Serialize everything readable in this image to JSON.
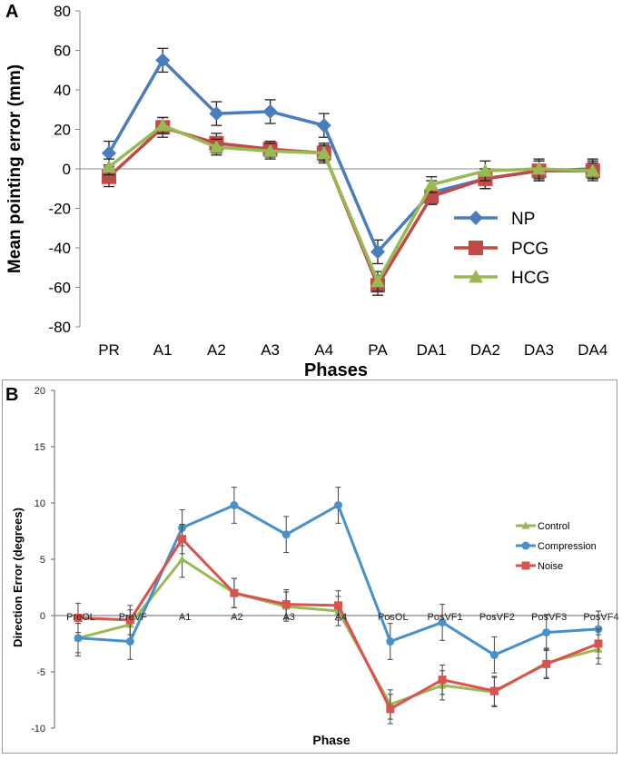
{
  "chart_data": [
    {
      "panel": "A",
      "type": "line",
      "title": "",
      "xlabel": "Phases",
      "ylabel": "Mean pointing error (mm)",
      "ylim": [
        -80,
        80
      ],
      "yticks": [
        -80,
        -60,
        -40,
        -20,
        0,
        20,
        40,
        60,
        80
      ],
      "categories": [
        "PR",
        "A1",
        "A2",
        "A3",
        "A4",
        "PA",
        "DA1",
        "DA2",
        "DA3",
        "DA4"
      ],
      "legend_position": "right",
      "series": [
        {
          "name": "NP",
          "color": "#4a7ebb",
          "marker": "diamond",
          "values": [
            8,
            55,
            28,
            29,
            22,
            -42,
            -12,
            -5,
            -1,
            0
          ],
          "errors": [
            6,
            6,
            6,
            6,
            6,
            6,
            6,
            5,
            5,
            5
          ]
        },
        {
          "name": "PCG",
          "color": "#be4b48",
          "marker": "square",
          "values": [
            -4,
            21,
            13,
            10,
            8,
            -59,
            -14,
            -5,
            -1,
            -1
          ],
          "errors": [
            5,
            5,
            5,
            4,
            5,
            5,
            4,
            5,
            5,
            5
          ]
        },
        {
          "name": "HCG",
          "color": "#98b954",
          "marker": "triangle",
          "values": [
            1,
            22,
            11,
            9,
            8,
            -57,
            -8,
            -1,
            0,
            -1
          ],
          "errors": [
            4,
            4,
            4,
            4,
            4,
            5,
            4,
            5,
            5,
            4
          ]
        }
      ]
    },
    {
      "panel": "B",
      "type": "line",
      "title": "",
      "xlabel": "Phase",
      "ylabel": "Direction Error (degrees)",
      "ylim": [
        -10,
        20
      ],
      "yticks": [
        -10,
        -5,
        0,
        5,
        10,
        15,
        20
      ],
      "categories": [
        "PreOL",
        "PreVF",
        "A1",
        "A2",
        "A3",
        "A4",
        "PosOL",
        "PosVF1",
        "PosVF2",
        "PosVF3",
        "PosVF4"
      ],
      "legend_position": "right",
      "series": [
        {
          "name": "Control",
          "color": "#98b954",
          "marker": "triangle",
          "values": [
            -2.0,
            -0.8,
            5.0,
            2.0,
            0.8,
            0.4,
            -7.9,
            -6.2,
            -6.8,
            -4.2,
            -3.0
          ],
          "errors": [
            1.3,
            1.3,
            1.6,
            1.3,
            1.3,
            1.3,
            1.3,
            1.3,
            1.3,
            1.3,
            1.3
          ]
        },
        {
          "name": "Compression",
          "color": "#4a90c8",
          "marker": "circle",
          "values": [
            -2.0,
            -2.3,
            7.8,
            9.8,
            7.2,
            9.8,
            -2.3,
            -0.6,
            -3.5,
            -1.5,
            -1.2
          ],
          "errors": [
            1.6,
            1.6,
            1.6,
            1.6,
            1.6,
            1.6,
            1.6,
            1.6,
            1.6,
            1.6,
            1.6
          ]
        },
        {
          "name": "Noise",
          "color": "#d9534f",
          "marker": "square",
          "values": [
            -0.2,
            -0.4,
            6.8,
            2.0,
            1.0,
            0.9,
            -8.3,
            -5.7,
            -6.7,
            -4.3,
            -2.5
          ],
          "errors": [
            1.3,
            1.3,
            1.3,
            1.3,
            1.3,
            1.3,
            1.3,
            1.3,
            1.3,
            1.3,
            1.3
          ]
        }
      ]
    }
  ],
  "labels": {
    "panel_a": "A",
    "panel_b": "B"
  }
}
